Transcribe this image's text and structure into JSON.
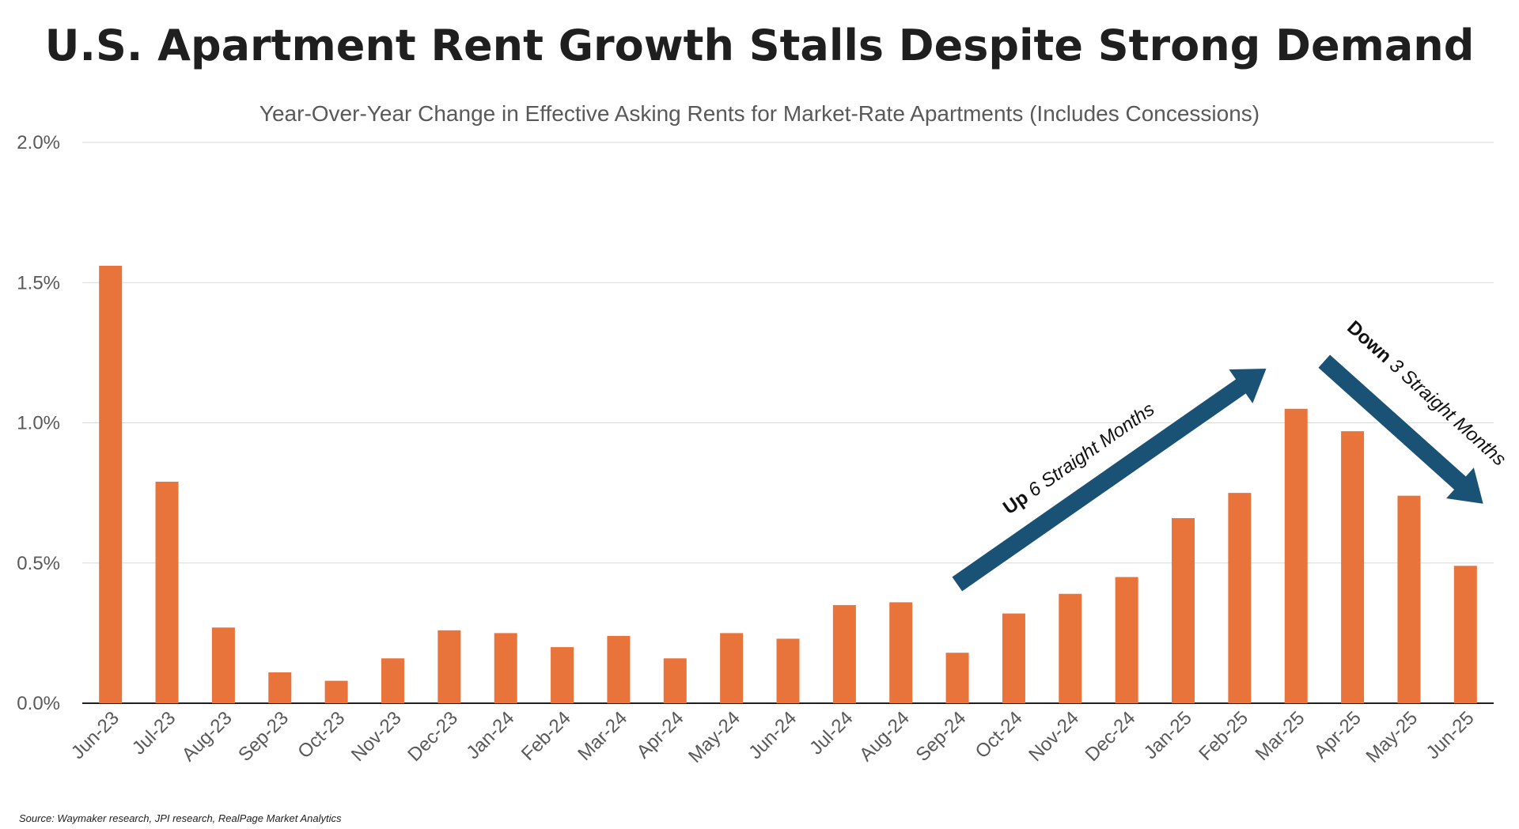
{
  "chart_data": {
    "type": "bar",
    "title": "U.S. Apartment Rent Growth Stalls Despite Strong Demand",
    "subtitle": "Year-Over-Year Change in Effective Asking Rents for Market-Rate Apartments (Includes Concessions)",
    "xlabel": "",
    "ylabel": "",
    "ylim": [
      0,
      2.0
    ],
    "yticks": [
      {
        "value": 0.0,
        "label": "0.0%"
      },
      {
        "value": 0.5,
        "label": "0.5%"
      },
      {
        "value": 1.0,
        "label": "1.0%"
      },
      {
        "value": 1.5,
        "label": "1.5%"
      },
      {
        "value": 2.0,
        "label": "2.0%"
      }
    ],
    "grid": true,
    "categories": [
      "Jun-23",
      "Jul-23",
      "Aug-23",
      "Sep-23",
      "Oct-23",
      "Nov-23",
      "Dec-23",
      "Jan-24",
      "Feb-24",
      "Mar-24",
      "Apr-24",
      "May-24",
      "Jun-24",
      "Jul-24",
      "Aug-24",
      "Sep-24",
      "Oct-24",
      "Nov-24",
      "Dec-24",
      "Jan-25",
      "Feb-25",
      "Mar-25",
      "Apr-25",
      "May-25",
      "Jun-25"
    ],
    "values": [
      1.56,
      0.79,
      0.27,
      0.11,
      0.08,
      0.16,
      0.26,
      0.25,
      0.2,
      0.24,
      0.16,
      0.25,
      0.23,
      0.35,
      0.36,
      0.18,
      0.32,
      0.39,
      0.45,
      0.66,
      0.75,
      1.05,
      0.97,
      0.74,
      0.49
    ],
    "bar_color": "#e8743b",
    "annotations": [
      {
        "bold": "Up",
        "text": " 6 Straight Months",
        "arrow_color": "#1a5276",
        "direction": "up",
        "from_category": "Sep-24",
        "to_category": "Mar-25"
      },
      {
        "bold": "Down",
        "text": " 3 Straight Months",
        "arrow_color": "#1a5276",
        "direction": "down",
        "from_category": "Mar-25",
        "to_category": "Jun-25"
      }
    ],
    "source": "Source: Waymaker research, JPI research, RealPage Market Analytics"
  }
}
